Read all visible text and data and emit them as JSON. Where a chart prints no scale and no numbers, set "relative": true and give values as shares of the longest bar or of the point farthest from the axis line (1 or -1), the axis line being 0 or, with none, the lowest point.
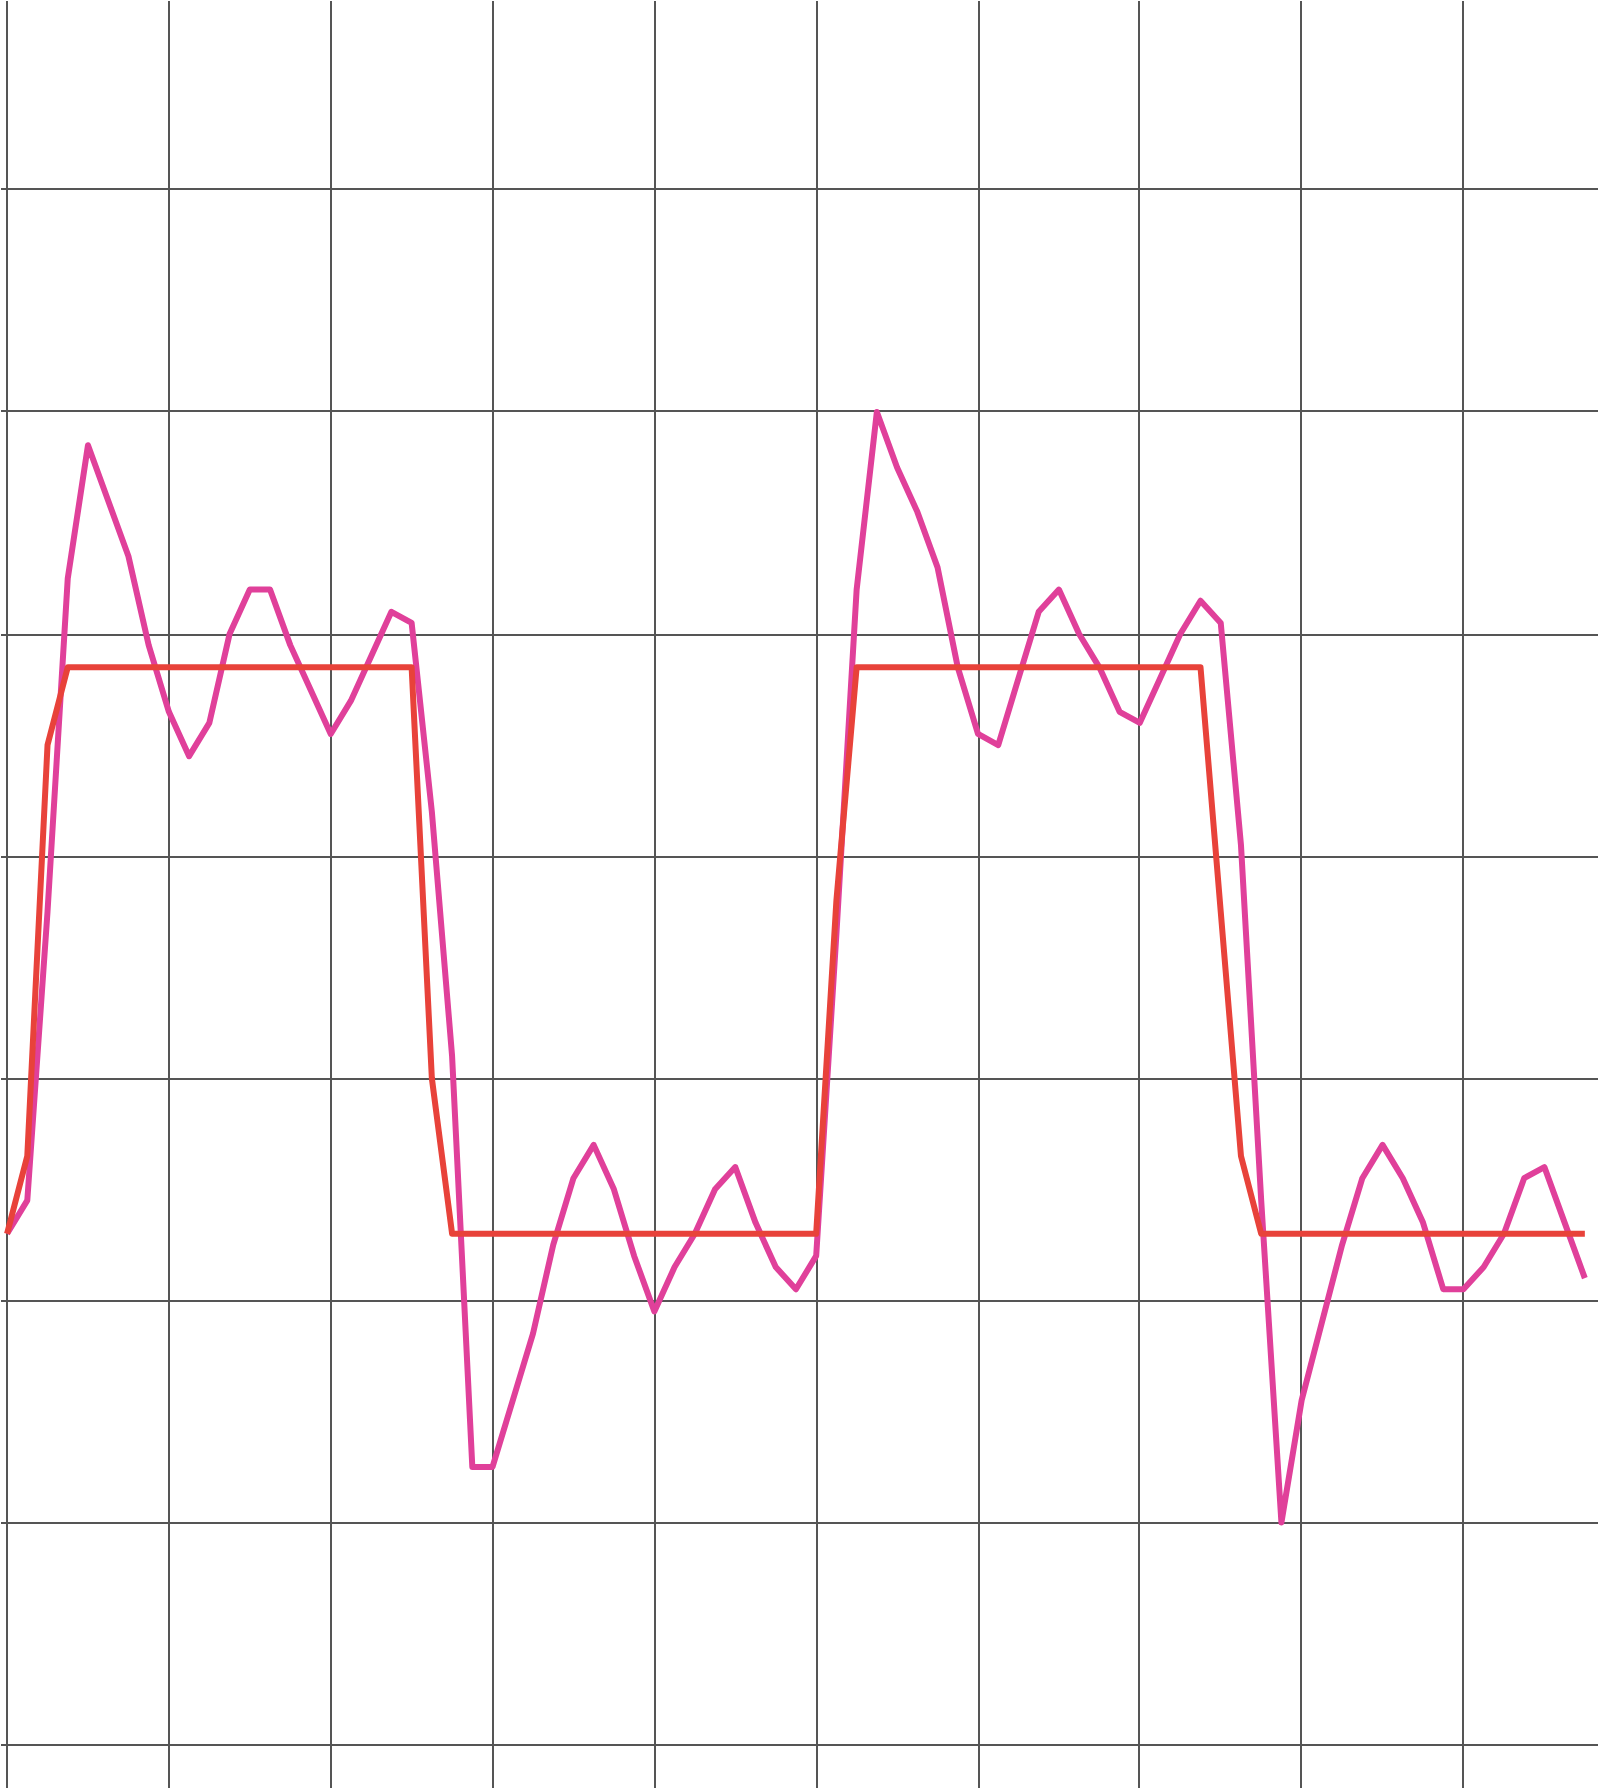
{
  "chart_data": {
    "type": "line",
    "relative": true,
    "grid": true,
    "tick_labels": false,
    "marker": "none",
    "line_style": "solid",
    "categories": [
      null,
      null,
      null,
      null,
      null,
      null,
      null,
      null,
      null,
      null,
      null,
      null,
      null,
      null,
      null,
      null,
      null,
      null,
      null,
      null,
      null,
      null,
      null,
      null,
      null,
      null,
      null,
      null,
      null,
      null,
      null,
      null,
      null,
      null,
      null,
      null,
      null,
      null,
      null,
      null,
      null,
      null,
      null,
      null,
      null,
      null,
      null,
      null,
      null,
      null,
      null,
      null,
      null,
      null,
      null,
      null,
      null,
      null,
      null,
      null,
      null,
      null,
      null,
      null,
      null,
      null,
      null,
      null,
      null,
      null,
      null,
      null,
      null,
      null,
      null,
      null,
      null,
      null,
      null
    ],
    "series": [
      {
        "color": "#e0409a",
        "values": [
          0.26,
          0.29,
          0.55,
          0.85,
          0.97,
          0.92,
          0.87,
          0.79,
          0.73,
          0.69,
          0.72,
          0.8,
          0.84,
          0.84,
          0.79,
          0.75,
          0.71,
          0.74,
          0.78,
          0.82,
          0.81,
          0.64,
          0.42,
          0.05,
          0.05,
          0.11,
          0.17,
          0.25,
          0.31,
          0.34,
          0.3,
          0.24,
          0.19,
          0.23,
          0.26,
          0.3,
          0.32,
          0.27,
          0.23,
          0.21,
          0.24,
          0.53,
          0.84,
          1.0,
          0.95,
          0.91,
          0.86,
          0.77,
          0.71,
          0.7,
          0.76,
          0.82,
          0.84,
          0.8,
          0.77,
          0.73,
          0.72,
          0.76,
          0.8,
          0.83,
          0.81,
          0.61,
          0.29,
          0.0,
          0.11,
          0.18,
          0.25,
          0.31,
          0.34,
          0.31,
          0.27,
          0.21,
          0.21,
          0.23,
          0.26,
          0.31,
          0.32,
          0.27,
          0.22
        ]
      },
      {
        "color": "#e8423a",
        "values": [
          0.26,
          0.33,
          0.7,
          0.77,
          0.77,
          0.77,
          0.77,
          0.77,
          0.77,
          0.77,
          0.77,
          0.77,
          0.77,
          0.77,
          0.77,
          0.77,
          0.77,
          0.77,
          0.77,
          0.77,
          0.77,
          0.4,
          0.26,
          0.26,
          0.26,
          0.26,
          0.26,
          0.26,
          0.26,
          0.26,
          0.26,
          0.26,
          0.26,
          0.26,
          0.26,
          0.26,
          0.26,
          0.26,
          0.26,
          0.26,
          0.26,
          0.56,
          0.77,
          0.77,
          0.77,
          0.77,
          0.77,
          0.77,
          0.77,
          0.77,
          0.77,
          0.77,
          0.77,
          0.77,
          0.77,
          0.77,
          0.77,
          0.77,
          0.77,
          0.77,
          0.55,
          0.33,
          0.26,
          0.26,
          0.26,
          0.26,
          0.26,
          0.26,
          0.26,
          0.26,
          0.26,
          0.26,
          0.26,
          0.26,
          0.26,
          0.26,
          0.26,
          0.26,
          0.26
        ]
      }
    ]
  }
}
